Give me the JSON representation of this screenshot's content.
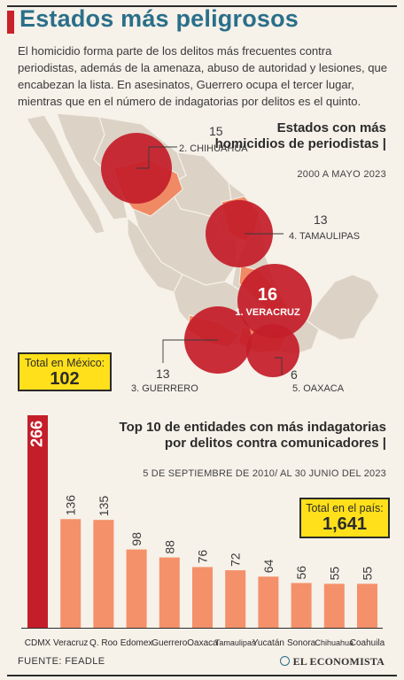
{
  "header": {
    "title": "Estados más peligrosos",
    "intro": "El homicidio forma parte de los delitos más frecuentes contra periodistas, además de la amenaza, abuso de autoridad y lesiones, que encabezan la lista. En asesinatos, Guerrero ocupa el tercer lugar, mientras que en el número de indagatorias por delitos es el quinto."
  },
  "map": {
    "title": "Estados con más homicidios de periodistas |",
    "subtitle": "2000 A MAYO 2023",
    "total_label": "Total en México:",
    "total_value": "102",
    "states": [
      {
        "rank_label": "1. VERACRUZ",
        "value": "16"
      },
      {
        "rank_label": "2. CHIHUAHUA",
        "value": "15"
      },
      {
        "rank_label": "3. GUERRERO",
        "value": "13"
      },
      {
        "rank_label": "4. TAMAULIPAS",
        "value": "13"
      },
      {
        "rank_label": "5. OAXACA",
        "value": "6"
      }
    ],
    "colors": {
      "land": "#dcd3c6",
      "highlight": "#f08a64",
      "bubble": "#c41e2a"
    }
  },
  "bars": {
    "title": "Top 10 de entidades con más indagatorias por delitos contra comunicadores |",
    "subtitle": "5 DE SEPTIEMBRE DE 2010/ AL 30 JUNIO DEL 2023",
    "total_label": "Total en el país:",
    "total_value": "1,641"
  },
  "chart_data": {
    "type": "bar",
    "categories": [
      "CDMX",
      "Veracruz",
      "Q. Roo",
      "Edomex",
      "Guerrero",
      "Oaxaca",
      "Tamaulipas",
      "Yucatán",
      "Sonora",
      "Chihuahua",
      "Coahuila"
    ],
    "values": [
      266,
      136,
      135,
      98,
      88,
      76,
      72,
      64,
      56,
      55,
      55
    ],
    "colors": {
      "first": "#c41e2a",
      "rest": "#f4916a"
    }
  },
  "footer": {
    "source": "FUENTE: FEADLE",
    "brand": "EL ECONOMISTA"
  }
}
